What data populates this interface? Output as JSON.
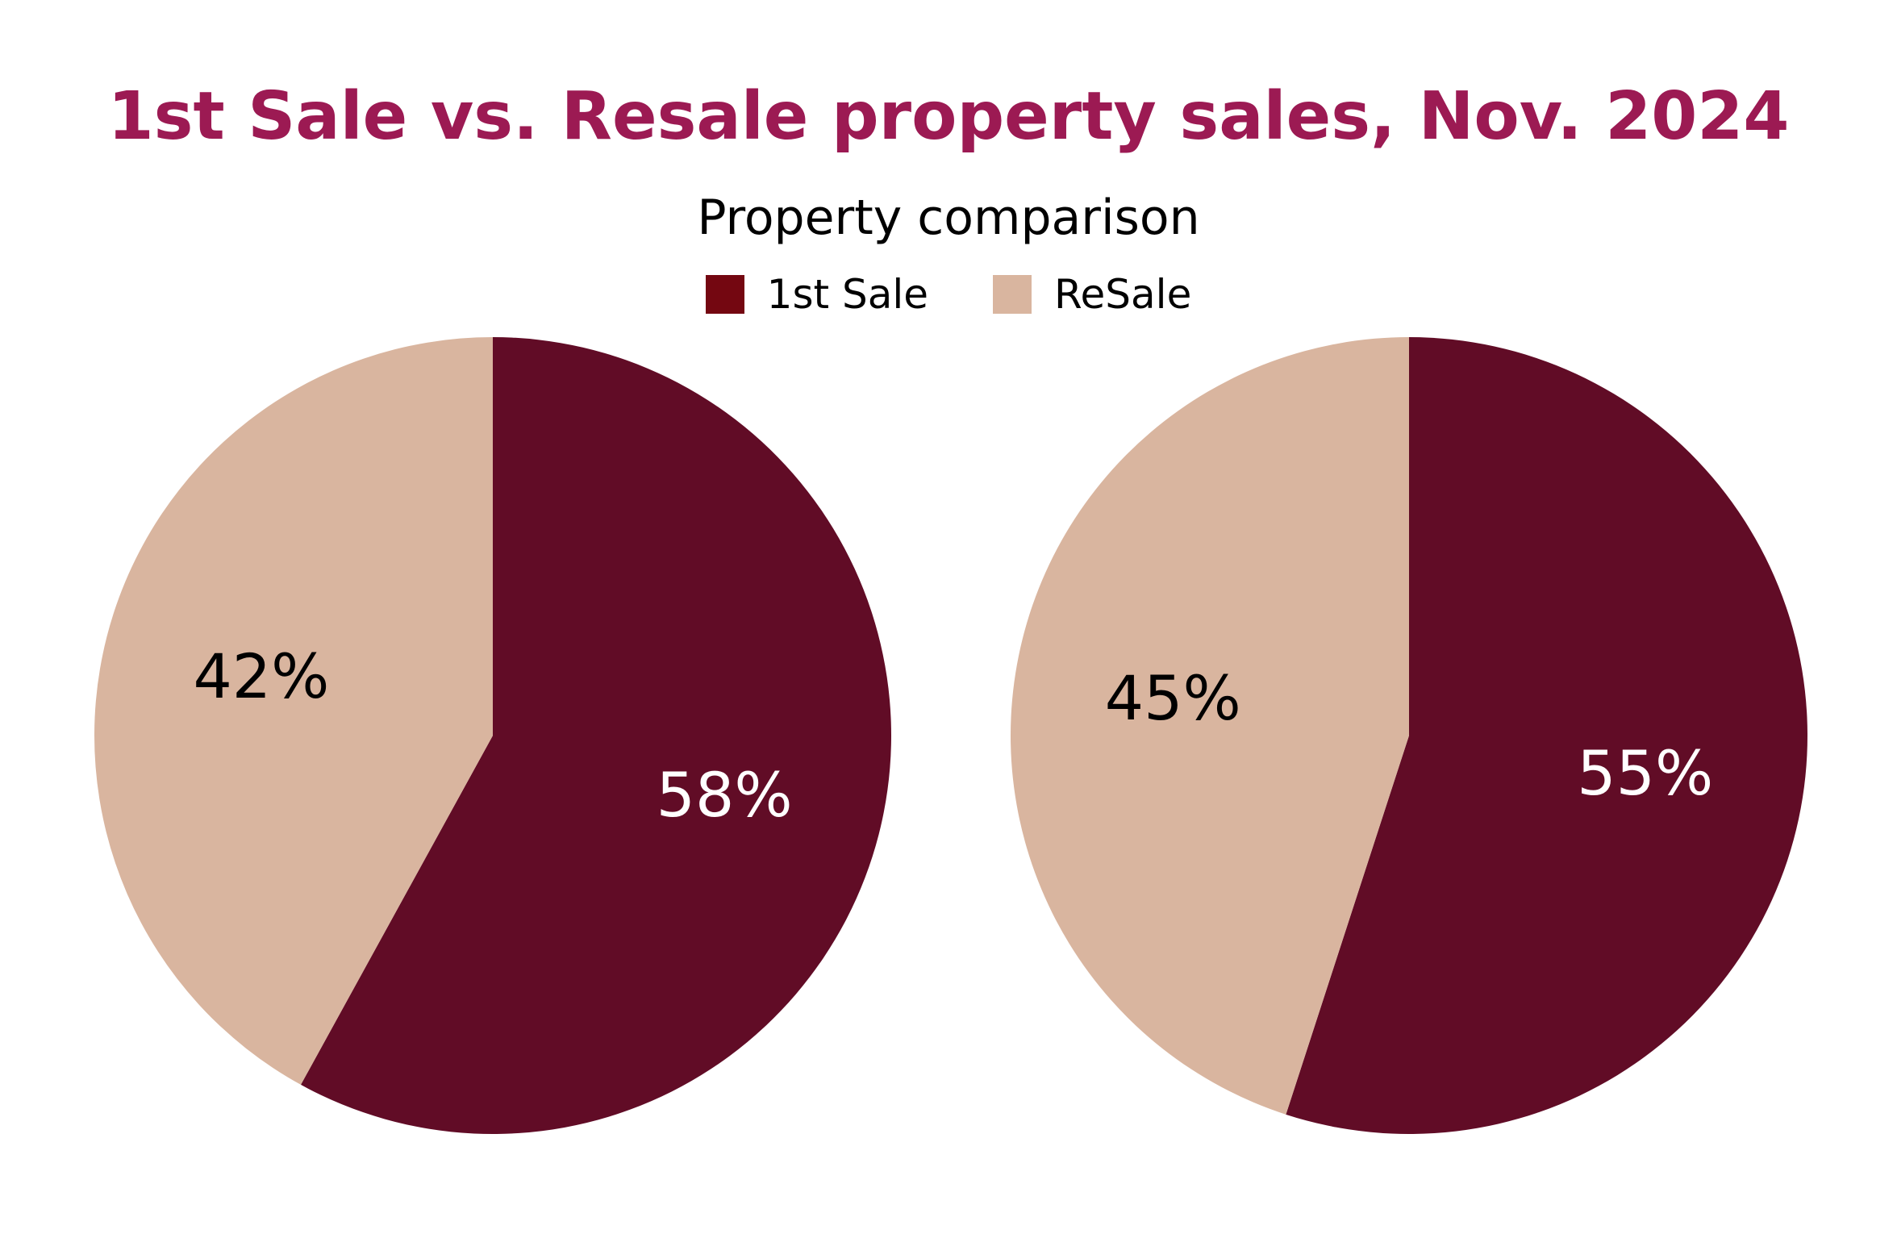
{
  "title": "1st Sale vs. Resale property sales, Nov. 2024",
  "subtitle": "Property comparison",
  "legend": {
    "items": [
      {
        "label": "1st Sale",
        "color": "#740711"
      },
      {
        "label": "ReSale",
        "color": "#d9b59f"
      }
    ]
  },
  "chart_data": [
    {
      "type": "pie",
      "categories": [
        "1st Sale",
        "ReSale"
      ],
      "values": [
        58,
        42
      ],
      "labels": [
        "58%",
        "42%"
      ],
      "colors": [
        "#610c26",
        "#d9b59f"
      ],
      "label_colors": [
        "#ffffff",
        "#000000"
      ]
    },
    {
      "type": "pie",
      "categories": [
        "1st Sale",
        "ReSale"
      ],
      "values": [
        55,
        45
      ],
      "labels": [
        "55%",
        "45%"
      ],
      "colors": [
        "#610c26",
        "#d9b59f"
      ],
      "label_colors": [
        "#ffffff",
        "#000000"
      ]
    }
  ]
}
